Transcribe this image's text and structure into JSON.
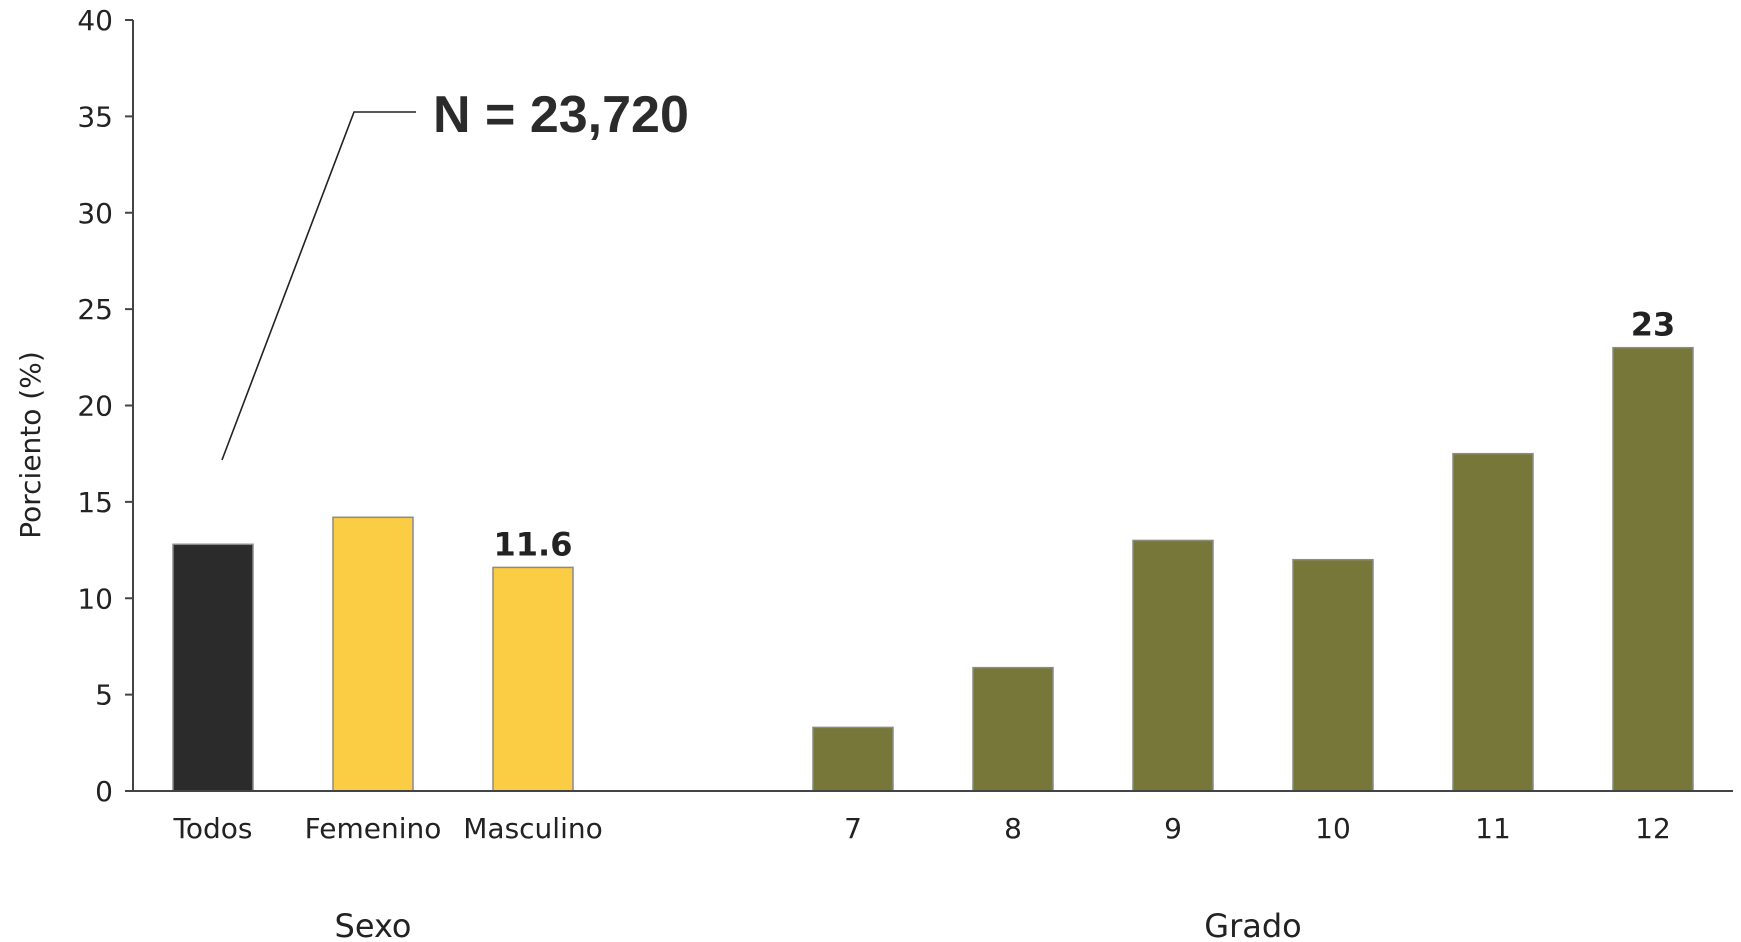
{
  "chart_data": {
    "type": "bar",
    "ylabel": "Porciento (%)",
    "ylim": [
      0,
      40
    ],
    "yticks": [
      "0",
      "5",
      "10",
      "15",
      "20",
      "25",
      "30",
      "35",
      "40"
    ],
    "grid": false,
    "groups": [
      {
        "name": "Sexo",
        "categories": [
          "Todos",
          "Femenino",
          "Masculino"
        ]
      },
      {
        "name": "Grado",
        "categories": [
          "7",
          "8",
          "9",
          "10",
          "11",
          "12"
        ]
      }
    ],
    "categories": [
      "Todos",
      "Femenino",
      "Masculino",
      "7",
      "8",
      "9",
      "10",
      "11",
      "12"
    ],
    "values": [
      12.8,
      14.2,
      11.6,
      3.3,
      6.4,
      13.0,
      12.0,
      17.5,
      23.0
    ],
    "colors": [
      "#2b2b2b",
      "#fbcd45",
      "#fbcd45",
      "#77773a",
      "#77773a",
      "#77773a",
      "#77773a",
      "#77773a",
      "#77773a"
    ],
    "data_labels": [
      {
        "category": "Masculino",
        "text": "11.6"
      },
      {
        "category": "12",
        "text": "23"
      }
    ],
    "annotation": {
      "text": "N = 23,720",
      "points_to": "Todos"
    }
  }
}
